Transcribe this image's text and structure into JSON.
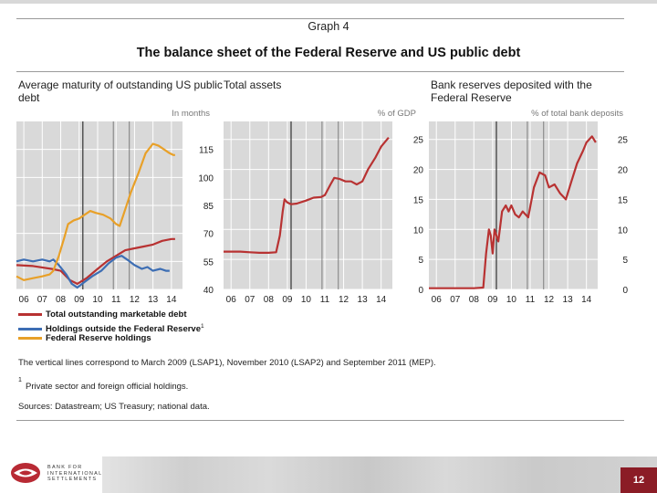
{
  "header": {
    "graph_label": "Graph 4",
    "title": "The balance sheet of the Federal Reserve and US public debt"
  },
  "chart_data": [
    {
      "type": "line",
      "title": "Average maturity of outstanding US public debt",
      "unit": "In months",
      "x_ticks": [
        "06",
        "07",
        "08",
        "09",
        "10",
        "11",
        "12",
        "13",
        "14"
      ],
      "x_range": [
        2005.6,
        2014.6
      ],
      "ylim": [
        40,
        130
      ],
      "y_ticks": [
        40,
        55,
        70,
        85,
        100,
        115
      ],
      "vlines": [
        2009.2,
        2010.85,
        2011.72
      ],
      "series": [
        {
          "name": "Total outstanding marketable debt",
          "color": "#b83232",
          "points": [
            [
              2005.6,
              53
            ],
            [
              2006.5,
              52.5
            ],
            [
              2007.5,
              51
            ],
            [
              2008.0,
              50
            ],
            [
              2008.5,
              45
            ],
            [
              2008.9,
              43
            ],
            [
              2009.4,
              46
            ],
            [
              2010.0,
              51
            ],
            [
              2010.5,
              55
            ],
            [
              2011.0,
              58
            ],
            [
              2011.5,
              61
            ],
            [
              2012.0,
              62
            ],
            [
              2012.5,
              63
            ],
            [
              2013.0,
              64
            ],
            [
              2013.5,
              66
            ],
            [
              2014.0,
              67
            ],
            [
              2014.2,
              67
            ]
          ]
        },
        {
          "name": "Holdings outside the Federal Reserve",
          "color": "#3d6eb4",
          "points": [
            [
              2005.6,
              55
            ],
            [
              2006.0,
              56
            ],
            [
              2006.5,
              55
            ],
            [
              2007.0,
              56
            ],
            [
              2007.4,
              55
            ],
            [
              2007.6,
              56
            ],
            [
              2007.9,
              53
            ],
            [
              2008.3,
              48
            ],
            [
              2008.6,
              43
            ],
            [
              2008.9,
              41
            ],
            [
              2009.3,
              44
            ],
            [
              2009.7,
              47
            ],
            [
              2010.2,
              50
            ],
            [
              2010.6,
              54
            ],
            [
              2011.0,
              57
            ],
            [
              2011.3,
              58
            ],
            [
              2011.6,
              56
            ],
            [
              2012.0,
              53
            ],
            [
              2012.4,
              51
            ],
            [
              2012.7,
              52
            ],
            [
              2013.0,
              50
            ],
            [
              2013.4,
              51
            ],
            [
              2013.7,
              50
            ],
            [
              2013.9,
              50
            ]
          ]
        },
        {
          "name": "Federal Reserve holdings",
          "color": "#e8a028",
          "points": [
            [
              2005.6,
              47
            ],
            [
              2006.0,
              45
            ],
            [
              2006.5,
              46
            ],
            [
              2007.0,
              47
            ],
            [
              2007.4,
              48
            ],
            [
              2007.6,
              50
            ],
            [
              2007.9,
              58
            ],
            [
              2008.2,
              68
            ],
            [
              2008.4,
              75
            ],
            [
              2008.7,
              77
            ],
            [
              2009.0,
              78
            ],
            [
              2009.3,
              80
            ],
            [
              2009.6,
              82
            ],
            [
              2009.9,
              81
            ],
            [
              2010.3,
              80
            ],
            [
              2010.7,
              78
            ],
            [
              2011.0,
              75
            ],
            [
              2011.2,
              74
            ],
            [
              2011.4,
              80
            ],
            [
              2011.8,
              92
            ],
            [
              2012.2,
              102
            ],
            [
              2012.6,
              113
            ],
            [
              2013.0,
              118
            ],
            [
              2013.3,
              117
            ],
            [
              2013.6,
              115
            ],
            [
              2013.9,
              113
            ],
            [
              2014.1,
              112
            ],
            [
              2014.2,
              112
            ]
          ]
        }
      ]
    },
    {
      "type": "line",
      "title": "Total assets",
      "unit": "% of GDP",
      "x_ticks": [
        "06",
        "07",
        "08",
        "09",
        "10",
        "11",
        "12",
        "13",
        "14"
      ],
      "x_range": [
        2005.6,
        2014.6
      ],
      "ylim": [
        0,
        28
      ],
      "y_ticks": [
        0,
        5,
        10,
        15,
        20,
        25
      ],
      "vlines": [
        2009.2,
        2010.85,
        2011.72
      ],
      "series": [
        {
          "name": "Total assets",
          "color": "#b83232",
          "points": [
            [
              2005.6,
              6.3
            ],
            [
              2006.0,
              6.3
            ],
            [
              2006.5,
              6.3
            ],
            [
              2007.0,
              6.2
            ],
            [
              2007.5,
              6.1
            ],
            [
              2008.0,
              6.1
            ],
            [
              2008.4,
              6.2
            ],
            [
              2008.6,
              9
            ],
            [
              2008.75,
              13
            ],
            [
              2008.85,
              15
            ],
            [
              2009.0,
              14.5
            ],
            [
              2009.2,
              14.2
            ],
            [
              2009.5,
              14.3
            ],
            [
              2010.0,
              14.8
            ],
            [
              2010.4,
              15.3
            ],
            [
              2010.8,
              15.4
            ],
            [
              2011.0,
              15.7
            ],
            [
              2011.3,
              17.5
            ],
            [
              2011.5,
              18.6
            ],
            [
              2011.8,
              18.4
            ],
            [
              2012.1,
              18
            ],
            [
              2012.4,
              18
            ],
            [
              2012.7,
              17.5
            ],
            [
              2013.0,
              18
            ],
            [
              2013.3,
              20
            ],
            [
              2013.7,
              22
            ],
            [
              2014.0,
              23.8
            ],
            [
              2014.4,
              25.3
            ]
          ]
        }
      ]
    },
    {
      "type": "line",
      "title": "Bank reserves deposited with the Federal Reserve",
      "unit": "% of total bank deposits",
      "x_ticks": [
        "06",
        "07",
        "08",
        "09",
        "10",
        "11",
        "12",
        "13",
        "14"
      ],
      "x_range": [
        2005.6,
        2014.6
      ],
      "ylim": [
        0,
        28
      ],
      "y_ticks": [
        0,
        5,
        10,
        15,
        20,
        25
      ],
      "vlines": [
        2009.2,
        2010.85,
        2011.72
      ],
      "series": [
        {
          "name": "Bank reserves",
          "color": "#b83232",
          "points": [
            [
              2005.6,
              0.2
            ],
            [
              2006.0,
              0.2
            ],
            [
              2007.0,
              0.2
            ],
            [
              2007.5,
              0.2
            ],
            [
              2008.0,
              0.2
            ],
            [
              2008.5,
              0.3
            ],
            [
              2008.65,
              6
            ],
            [
              2008.8,
              10
            ],
            [
              2008.9,
              9
            ],
            [
              2009.0,
              6
            ],
            [
              2009.1,
              10
            ],
            [
              2009.3,
              8
            ],
            [
              2009.5,
              13
            ],
            [
              2009.7,
              14
            ],
            [
              2009.85,
              13
            ],
            [
              2010.0,
              14
            ],
            [
              2010.2,
              12.5
            ],
            [
              2010.4,
              12
            ],
            [
              2010.6,
              13
            ],
            [
              2010.9,
              12
            ],
            [
              2011.2,
              17
            ],
            [
              2011.5,
              19.5
            ],
            [
              2011.8,
              19
            ],
            [
              2012.0,
              17
            ],
            [
              2012.3,
              17.5
            ],
            [
              2012.6,
              16
            ],
            [
              2012.9,
              15
            ],
            [
              2013.2,
              18
            ],
            [
              2013.5,
              21
            ],
            [
              2013.8,
              23
            ],
            [
              2014.0,
              24.5
            ],
            [
              2014.3,
              25.5
            ],
            [
              2014.5,
              24.5
            ]
          ]
        }
      ]
    }
  ],
  "legend": [
    {
      "label": "Total outstanding marketable debt",
      "color": "#b83232"
    },
    {
      "label": "Holdings outside the Federal Reserve",
      "color": "#3d6eb4",
      "sup": "1"
    },
    {
      "label": "Federal Reserve holdings",
      "color": "#e8a028"
    }
  ],
  "notes": {
    "vertical_lines": "The vertical lines correspond to March 2009 (LSAP1), November 2010 (LSAP2) and September 2011 (MEP).",
    "footnote_num": "1",
    "footnote": "Private sector and foreign official holdings.",
    "sources": "Sources: Datastream; US Treasury; national data."
  },
  "footer": {
    "bis_line1": "BANK FOR",
    "bis_line2": "INTERNATIONAL",
    "bis_line3": "SETTLEMENTS",
    "page_number": "12"
  }
}
